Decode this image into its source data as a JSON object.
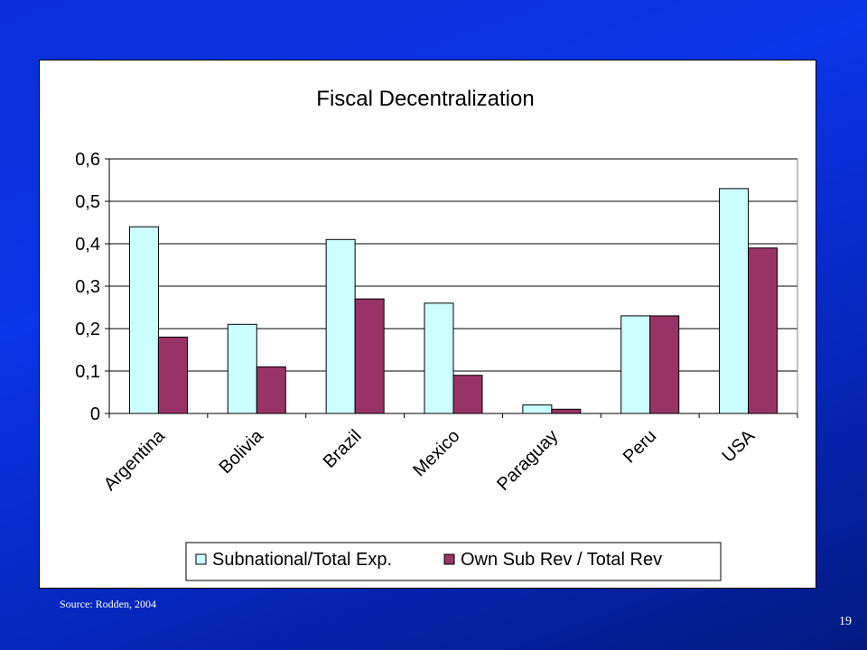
{
  "slide": {
    "source": "Source: Rodden, 2004",
    "page_number": "19"
  },
  "colors": {
    "series1": "#ccffff",
    "series2": "#993366",
    "background": "#0a2fd6"
  },
  "chart_data": {
    "type": "bar",
    "title": "Fiscal Decentralization",
    "xlabel": "",
    "ylabel": "",
    "categories": [
      "Argentina",
      "Bolivia",
      "Brazil",
      "Mexico",
      "Paraguay",
      "Peru",
      "USA"
    ],
    "series": [
      {
        "name": "Subnational/Total Exp.",
        "values": [
          0.44,
          0.21,
          0.41,
          0.26,
          0.02,
          0.23,
          0.53
        ]
      },
      {
        "name": "Own Sub Rev / Total Rev",
        "values": [
          0.18,
          0.11,
          0.27,
          0.09,
          0.01,
          0.23,
          0.39
        ]
      }
    ],
    "ylim": [
      0,
      0.6
    ],
    "yticks": [
      "0",
      "0,1",
      "0,2",
      "0,3",
      "0,4",
      "0,5",
      "0,6"
    ],
    "grid": true,
    "legend": "bottom"
  }
}
